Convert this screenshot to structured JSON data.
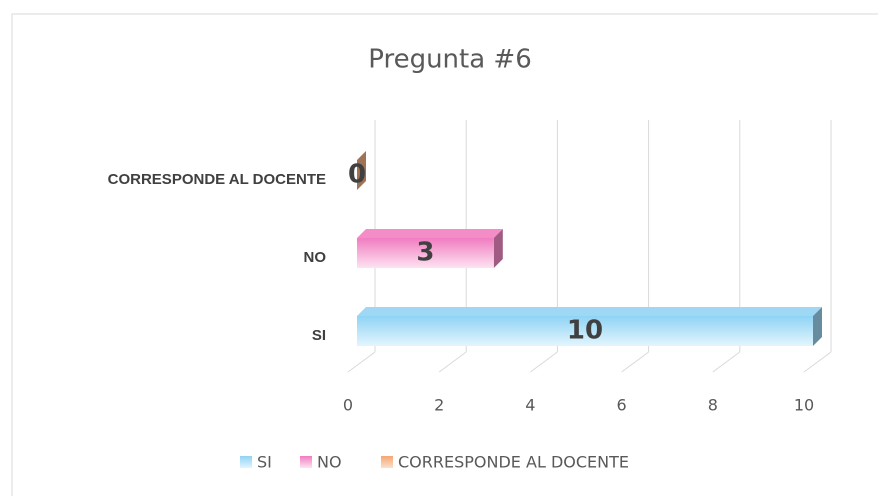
{
  "chart_data": {
    "type": "bar3d_horizontal",
    "title": "Pregunta #6",
    "categories": [
      "SI",
      "NO",
      "CORRESPONDE AL DOCENTE"
    ],
    "values": [
      10,
      3,
      0
    ],
    "colors": [
      "#9fd8f5",
      "#f48cc8",
      "#f4b183"
    ],
    "xlim": [
      0,
      10
    ],
    "xticks": [
      0,
      2,
      4,
      6,
      8,
      10
    ],
    "grid": true,
    "legend": "bottom"
  }
}
